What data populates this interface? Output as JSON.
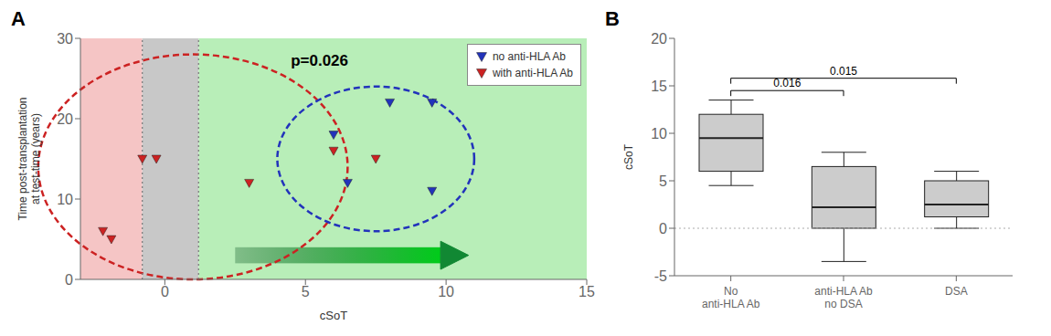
{
  "chart_data": [
    {
      "type": "scatter",
      "title": "A",
      "x_label": "cSoT",
      "y_label": "Time post-transplantation\nat test-time (years)",
      "xlim": [
        -3,
        15
      ],
      "ylim": [
        0,
        30
      ],
      "xticks": [
        0,
        5,
        10,
        15
      ],
      "yticks": [
        0,
        10,
        20,
        30
      ],
      "grid": false,
      "legend": "upper right",
      "series": [
        {
          "name": "no anti-HLA Ab",
          "color": "#2233bb",
          "marker": "triangle-down",
          "x": [
            6.0,
            6.5,
            8.0,
            9.5,
            9.5
          ],
          "values": [
            18,
            12,
            22,
            22,
            11
          ]
        },
        {
          "name": "with anti-HLA Ab",
          "color": "#cc2222",
          "marker": "triangle-down",
          "x": [
            -2.2,
            -1.9,
            -0.8,
            -0.3,
            3.0,
            6.0,
            7.5
          ],
          "values": [
            6,
            5,
            15,
            15,
            12,
            16,
            15
          ]
        }
      ],
      "annotations": [
        {
          "text": "p=0.026",
          "x": 5.5,
          "y": 28.0
        }
      ],
      "regions": [
        {
          "x_start": -3,
          "x_end": -0.8,
          "color": "#f5c5c5"
        },
        {
          "x_start": -0.8,
          "x_end": 1.2,
          "color": "#c8c8c8"
        },
        {
          "x_start": 1.2,
          "x_end": 15,
          "color": "#b8eeb8"
        }
      ],
      "vlines": [
        -0.8,
        1.2
      ],
      "ellipses": [
        {
          "cx": 1.0,
          "cy": 14,
          "rx": 5.5,
          "ry": 14,
          "color": "#cc2222"
        },
        {
          "cx": 7.5,
          "cy": 15,
          "rx": 3.5,
          "ry": 9,
          "color": "#2233bb"
        }
      ],
      "arrow": {
        "x_start": 2.5,
        "x_end": 10.8,
        "y": 3.0,
        "color": "#118833"
      }
    },
    {
      "type": "box",
      "title": "B",
      "y_label": "cSoT",
      "categories": [
        "No\nanti-HLA Ab",
        "anti-HLA Ab\nno DSA",
        "DSA"
      ],
      "boxes": [
        {
          "q1": 6.0,
          "median": 9.5,
          "q3": 12.0,
          "whisker_low": 4.5,
          "whisker_high": 13.5
        },
        {
          "q1": 0.0,
          "median": 2.2,
          "q3": 6.5,
          "whisker_low": -3.5,
          "whisker_high": 8.0
        },
        {
          "q1": 1.2,
          "median": 2.5,
          "q3": 5.0,
          "whisker_low": 0.0,
          "whisker_high": 6.0
        }
      ],
      "color": "#cccccc",
      "ylim": [
        -5,
        20
      ],
      "yticks": [
        -5,
        0,
        5,
        10,
        15,
        20
      ],
      "grid": false,
      "hlines": [
        0
      ],
      "brackets": [
        {
          "from": "No\nanti-HLA Ab",
          "to": "anti-HLA Ab\nno DSA",
          "y": 14.5,
          "label": "0.016"
        },
        {
          "from": "No\nanti-HLA Ab",
          "to": "DSA",
          "y": 15.8,
          "label": "0.015"
        }
      ]
    }
  ]
}
